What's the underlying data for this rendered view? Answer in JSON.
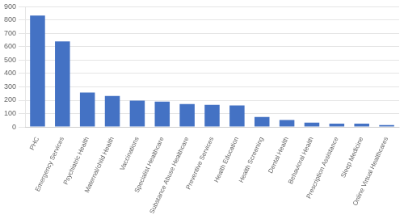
{
  "chart_data": {
    "type": "bar",
    "categories": [
      "PHC",
      "Emergency Services",
      "Psychiatric Health",
      "Maternal/child Health",
      "Vaccinations",
      "Specialist Healthcare",
      "Substance Abuse Healthcare",
      "Preventive Services",
      "Health Education",
      "Health Screening",
      "Dental Health",
      "Behavioral Health",
      "Prescription Assistance",
      "Sleep Medicine",
      "Online Virtual Healthcares"
    ],
    "values": [
      835,
      640,
      258,
      232,
      197,
      190,
      172,
      165,
      160,
      75,
      52,
      32,
      24,
      24,
      14
    ],
    "color": "#4472c4",
    "ylim": [
      0,
      900
    ],
    "yticks": [
      0,
      100,
      200,
      300,
      400,
      500,
      600,
      700,
      800,
      900
    ],
    "grid": true
  }
}
